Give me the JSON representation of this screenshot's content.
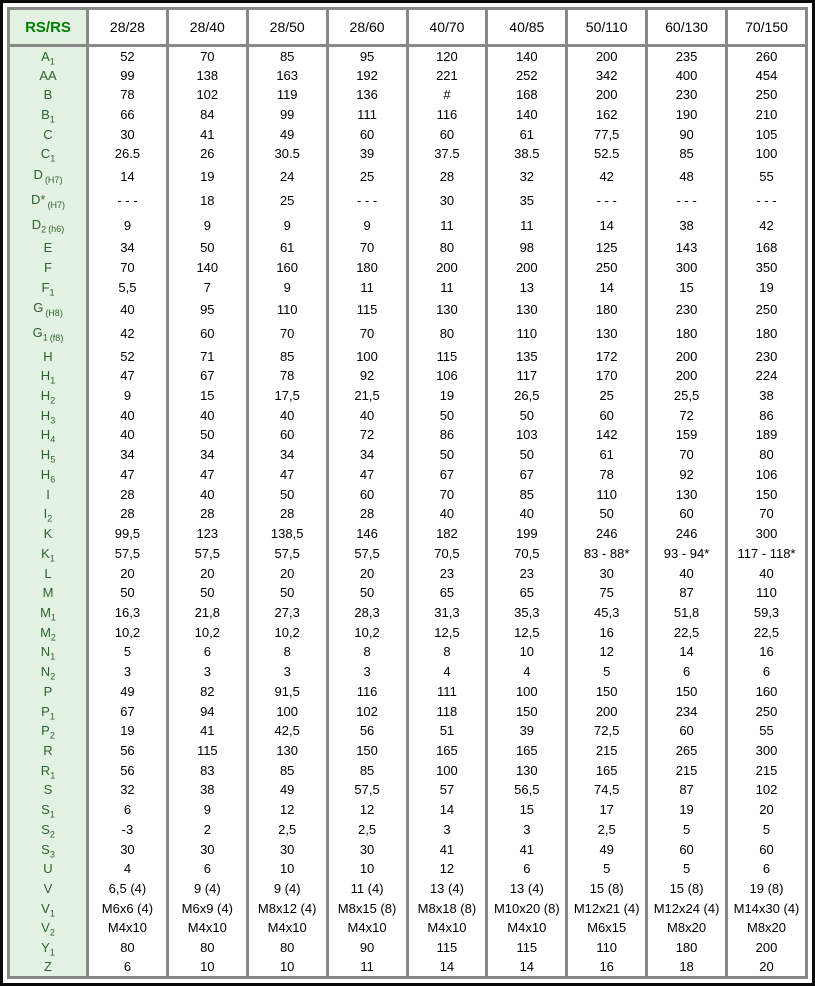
{
  "table": {
    "corner_label": "RS/RS",
    "columns": [
      "28/28",
      "28/40",
      "28/50",
      "28/60",
      "40/70",
      "40/85",
      "50/110",
      "60/130",
      "70/150"
    ],
    "colors": {
      "grid": "#888888",
      "label_bg": "#e3f2e3",
      "label_text": "#2f5f2f",
      "header_text": "#008000",
      "value_text": "#000000",
      "frame": "#0a0a0a"
    },
    "rows": [
      {
        "base": "A",
        "sub": "1",
        "note": "",
        "values": [
          "52",
          "70",
          "85",
          "95",
          "120",
          "140",
          "200",
          "235",
          "260"
        ]
      },
      {
        "base": "AA",
        "sub": "",
        "note": "",
        "values": [
          "99",
          "138",
          "163",
          "192",
          "221",
          "252",
          "342",
          "400",
          "454"
        ]
      },
      {
        "base": "B",
        "sub": "",
        "note": "",
        "values": [
          "78",
          "102",
          "119",
          "136",
          "#",
          "168",
          "200",
          "230",
          "250"
        ]
      },
      {
        "base": "B",
        "sub": "1",
        "note": "",
        "values": [
          "66",
          "84",
          "99",
          "111",
          "116",
          "140",
          "162",
          "190",
          "210"
        ]
      },
      {
        "base": "C",
        "sub": "",
        "note": "",
        "values": [
          "30",
          "41",
          "49",
          "60",
          "60",
          "61",
          "77,5",
          "90",
          "105"
        ]
      },
      {
        "base": "C",
        "sub": "1",
        "note": "",
        "values": [
          "26.5",
          "26",
          "30.5",
          "39",
          "37.5",
          "38.5",
          "52.5",
          "85",
          "100"
        ]
      },
      {
        "base": "D",
        "sub": "",
        "note": "(H7)",
        "values": [
          "14",
          "19",
          "24",
          "25",
          "28",
          "32",
          "42",
          "48",
          "55"
        ]
      },
      {
        "base": "D*",
        "sub": "",
        "note": "(H7)",
        "values": [
          "- - -",
          "18",
          "25",
          "- - -",
          "30",
          "35",
          "- - -",
          "- - -",
          "- - -"
        ]
      },
      {
        "base": "D",
        "sub": "2",
        "note": "(h6)",
        "values": [
          "9",
          "9",
          "9",
          "9",
          "11",
          "11",
          "14",
          "38",
          "42"
        ]
      },
      {
        "base": "E",
        "sub": "",
        "note": "",
        "values": [
          "34",
          "50",
          "61",
          "70",
          "80",
          "98",
          "125",
          "143",
          "168"
        ]
      },
      {
        "base": "F",
        "sub": "",
        "note": "",
        "values": [
          "70",
          "140",
          "160",
          "180",
          "200",
          "200",
          "250",
          "300",
          "350"
        ]
      },
      {
        "base": "F",
        "sub": "1",
        "note": "",
        "values": [
          "5,5",
          "7",
          "9",
          "11",
          "11",
          "13",
          "14",
          "15",
          "19"
        ]
      },
      {
        "base": "G",
        "sub": "",
        "note": "(H8)",
        "values": [
          "40",
          "95",
          "110",
          "115",
          "130",
          "130",
          "180",
          "230",
          "250"
        ]
      },
      {
        "base": "G",
        "sub": "1",
        "note": "(f8)",
        "values": [
          "42",
          "60",
          "70",
          "70",
          "80",
          "110",
          "130",
          "180",
          "180"
        ]
      },
      {
        "base": "H",
        "sub": "",
        "note": "",
        "values": [
          "52",
          "71",
          "85",
          "100",
          "115",
          "135",
          "172",
          "200",
          "230"
        ]
      },
      {
        "base": "H",
        "sub": "1",
        "note": "",
        "values": [
          "47",
          "67",
          "78",
          "92",
          "106",
          "117",
          "170",
          "200",
          "224"
        ]
      },
      {
        "base": "H",
        "sub": "2",
        "note": "",
        "values": [
          "9",
          "15",
          "17,5",
          "21,5",
          "19",
          "26,5",
          "25",
          "25,5",
          "38"
        ]
      },
      {
        "base": "H",
        "sub": "3",
        "note": "",
        "values": [
          "40",
          "40",
          "40",
          "40",
          "50",
          "50",
          "60",
          "72",
          "86"
        ]
      },
      {
        "base": "H",
        "sub": "4",
        "note": "",
        "values": [
          "40",
          "50",
          "60",
          "72",
          "86",
          "103",
          "142",
          "159",
          "189"
        ]
      },
      {
        "base": "H",
        "sub": "5",
        "note": "",
        "values": [
          "34",
          "34",
          "34",
          "34",
          "50",
          "50",
          "61",
          "70",
          "80"
        ]
      },
      {
        "base": "H",
        "sub": "6",
        "note": "",
        "values": [
          "47",
          "47",
          "47",
          "47",
          "67",
          "67",
          "78",
          "92",
          "106"
        ]
      },
      {
        "base": "I",
        "sub": "",
        "note": "",
        "values": [
          "28",
          "40",
          "50",
          "60",
          "70",
          "85",
          "110",
          "130",
          "150"
        ]
      },
      {
        "base": "I",
        "sub": "2",
        "note": "",
        "values": [
          "28",
          "28",
          "28",
          "28",
          "40",
          "40",
          "50",
          "60",
          "70"
        ]
      },
      {
        "base": "K",
        "sub": "",
        "note": "",
        "values": [
          "99,5",
          "123",
          "138,5",
          "146",
          "182",
          "199",
          "246",
          "246",
          "300"
        ]
      },
      {
        "base": "K",
        "sub": "1",
        "note": "",
        "values": [
          "57,5",
          "57,5",
          "57,5",
          "57,5",
          "70,5",
          "70,5",
          "83 - 88*",
          "93 - 94*",
          "117 - 118*"
        ]
      },
      {
        "base": "L",
        "sub": "",
        "note": "",
        "values": [
          "20",
          "20",
          "20",
          "20",
          "23",
          "23",
          "30",
          "40",
          "40"
        ]
      },
      {
        "base": "M",
        "sub": "",
        "note": "",
        "values": [
          "50",
          "50",
          "50",
          "50",
          "65",
          "65",
          "75",
          "87",
          "110"
        ]
      },
      {
        "base": "M",
        "sub": "1",
        "note": "",
        "values": [
          "16,3",
          "21,8",
          "27,3",
          "28,3",
          "31,3",
          "35,3",
          "45,3",
          "51,8",
          "59,3"
        ]
      },
      {
        "base": "M",
        "sub": "2",
        "note": "",
        "values": [
          "10,2",
          "10,2",
          "10,2",
          "10,2",
          "12,5",
          "12,5",
          "16",
          "22,5",
          "22,5"
        ]
      },
      {
        "base": "N",
        "sub": "1",
        "note": "",
        "values": [
          "5",
          "6",
          "8",
          "8",
          "8",
          "10",
          "12",
          "14",
          "16"
        ]
      },
      {
        "base": "N",
        "sub": "2",
        "note": "",
        "values": [
          "3",
          "3",
          "3",
          "3",
          "4",
          "4",
          "5",
          "6",
          "6"
        ]
      },
      {
        "base": "P",
        "sub": "",
        "note": "",
        "values": [
          "49",
          "82",
          "91,5",
          "116",
          "111",
          "100",
          "150",
          "150",
          "160"
        ]
      },
      {
        "base": "P",
        "sub": "1",
        "note": "",
        "values": [
          "67",
          "94",
          "100",
          "102",
          "118",
          "150",
          "200",
          "234",
          "250"
        ]
      },
      {
        "base": "P",
        "sub": "2",
        "note": "",
        "values": [
          "19",
          "41",
          "42,5",
          "56",
          "51",
          "39",
          "72,5",
          "60",
          "55"
        ]
      },
      {
        "base": "R",
        "sub": "",
        "note": "",
        "values": [
          "56",
          "115",
          "130",
          "150",
          "165",
          "165",
          "215",
          "265",
          "300"
        ]
      },
      {
        "base": "R",
        "sub": "1",
        "note": "",
        "values": [
          "56",
          "83",
          "85",
          "85",
          "100",
          "130",
          "165",
          "215",
          "215"
        ]
      },
      {
        "base": "S",
        "sub": "",
        "note": "",
        "values": [
          "32",
          "38",
          "49",
          "57,5",
          "57",
          "56,5",
          "74,5",
          "87",
          "102"
        ]
      },
      {
        "base": "S",
        "sub": "1",
        "note": "",
        "values": [
          "6",
          "9",
          "12",
          "12",
          "14",
          "15",
          "17",
          "19",
          "20"
        ]
      },
      {
        "base": "S",
        "sub": "2",
        "note": "",
        "values": [
          "-3",
          "2",
          "2,5",
          "2,5",
          "3",
          "3",
          "2,5",
          "5",
          "5"
        ]
      },
      {
        "base": "S",
        "sub": "3",
        "note": "",
        "values": [
          "30",
          "30",
          "30",
          "30",
          "41",
          "41",
          "49",
          "60",
          "60"
        ]
      },
      {
        "base": "U",
        "sub": "",
        "note": "",
        "values": [
          "4",
          "6",
          "10",
          "10",
          "12",
          "6",
          "5",
          "5",
          "6"
        ]
      },
      {
        "base": "V",
        "sub": "",
        "note": "",
        "values": [
          "6,5 (4)",
          "9 (4)",
          "9 (4)",
          "11 (4)",
          "13 (4)",
          "13 (4)",
          "15 (8)",
          "15 (8)",
          "19 (8)"
        ]
      },
      {
        "base": "V",
        "sub": "1",
        "note": "",
        "values": [
          "M6x6 (4)",
          "M6x9 (4)",
          "M8x12 (4)",
          "M8x15 (8)",
          "M8x18 (8)",
          "M10x20 (8)",
          "M12x21 (4)",
          "M12x24 (4)",
          "M14x30 (4)"
        ]
      },
      {
        "base": "V",
        "sub": "2",
        "note": "",
        "values": [
          "M4x10",
          "M4x10",
          "M4x10",
          "M4x10",
          "M4x10",
          "M4x10",
          "M6x15",
          "M8x20",
          "M8x20"
        ]
      },
      {
        "base": "Y",
        "sub": "1",
        "note": "",
        "values": [
          "80",
          "80",
          "80",
          "90",
          "115",
          "115",
          "110",
          "180",
          "200"
        ]
      },
      {
        "base": "Z",
        "sub": "",
        "note": "",
        "values": [
          "6",
          "10",
          "10",
          "11",
          "14",
          "14",
          "16",
          "18",
          "20"
        ]
      }
    ]
  }
}
